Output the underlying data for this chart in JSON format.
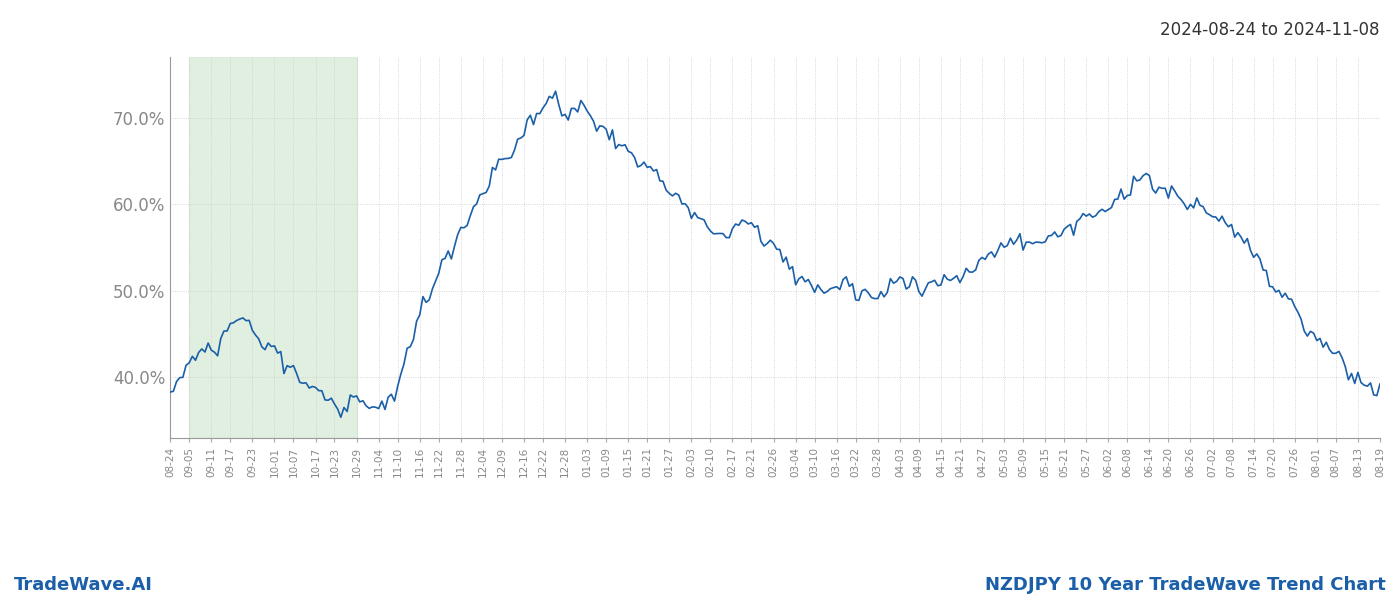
{
  "title_top_right": "2024-08-24 to 2024-11-08",
  "label_bottom_left": "TradeWave.AI",
  "label_bottom_right": "NZDJPY 10 Year TradeWave Trend Chart",
  "line_color": "#1a5fa8",
  "line_width": 1.2,
  "bg_color": "#ffffff",
  "grid_color": "#cccccc",
  "grid_style": "dotted",
  "shade_color": "#d4e9d4",
  "shade_alpha": 0.7,
  "ylim": [
    0.33,
    0.77
  ],
  "yticks": [
    0.4,
    0.5,
    0.6,
    0.7
  ],
  "ytick_labels": [
    "40.0%",
    "50.0%",
    "60.0%",
    "70.0%"
  ],
  "x_labels": [
    "08-24",
    "09-05",
    "09-11",
    "09-17",
    "09-23",
    "10-01",
    "10-07",
    "10-17",
    "10-23",
    "10-29",
    "11-04",
    "11-10",
    "11-16",
    "11-22",
    "11-28",
    "12-04",
    "12-09",
    "12-16",
    "12-22",
    "12-28",
    "01-03",
    "01-09",
    "01-15",
    "01-21",
    "01-27",
    "02-03",
    "02-10",
    "02-17",
    "02-21",
    "02-26",
    "03-04",
    "03-10",
    "03-16",
    "03-22",
    "03-28",
    "04-03",
    "04-09",
    "04-15",
    "04-21",
    "04-27",
    "05-03",
    "05-09",
    "05-15",
    "05-21",
    "05-27",
    "06-02",
    "06-08",
    "06-14",
    "06-20",
    "06-26",
    "07-02",
    "07-08",
    "07-14",
    "07-20",
    "07-26",
    "08-01",
    "08-07",
    "08-13",
    "08-19"
  ],
  "shade_x_start_label": "09-05",
  "shade_x_end_label": "10-29"
}
